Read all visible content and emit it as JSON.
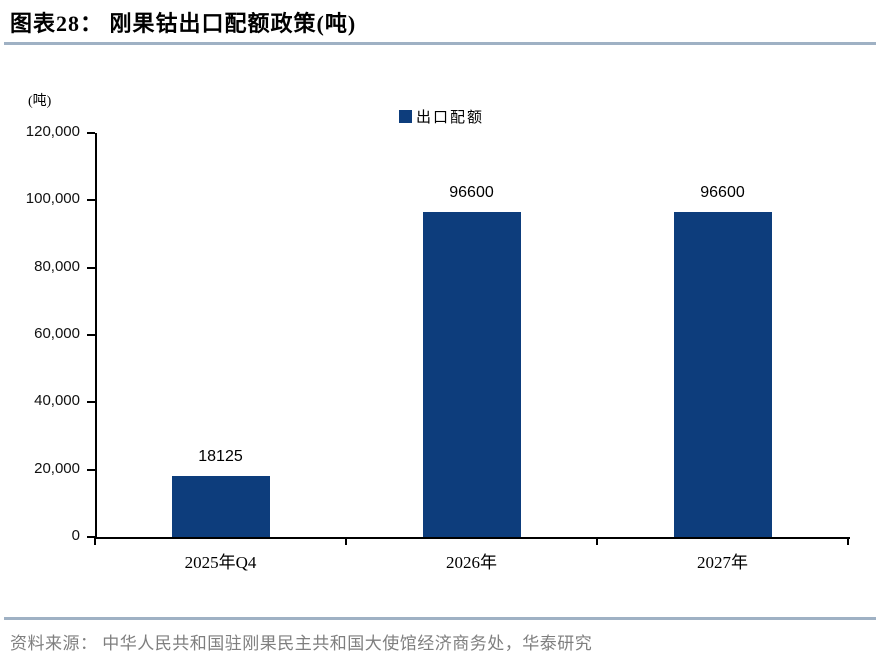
{
  "header": {
    "title": "图表28： 刚果钴出口配额政策(吨)"
  },
  "chart_data": {
    "type": "bar",
    "title": "刚果钴出口配额政策(吨)",
    "unit_label": "(吨)",
    "categories": [
      "2025年Q4",
      "2026年",
      "2027年"
    ],
    "series": [
      {
        "name": "出口配额",
        "values": [
          18125,
          96600,
          96600
        ],
        "data_labels": [
          "18125",
          "96600",
          "96600"
        ]
      }
    ],
    "ylim": [
      0,
      120000
    ],
    "ytick_interval": 20000,
    "ytick_labels": [
      "0",
      "20,000",
      "40,000",
      "60,000",
      "80,000",
      "100,000",
      "120,000"
    ],
    "grid": false,
    "legend_position": "top-center",
    "bar_color": "#0D3D7C"
  },
  "legend": {
    "items": [
      {
        "label": "出口配额",
        "color": "#0D3D7C"
      }
    ]
  },
  "footer": {
    "source": "资料来源： 中华人民共和国驻刚果民主共和国大使馆经济商务处，华泰研究"
  },
  "colors": {
    "bar": "#0D3D7C",
    "divider": "#9FB1C4",
    "source_text": "#7F7F7F",
    "axis": "#000000"
  }
}
